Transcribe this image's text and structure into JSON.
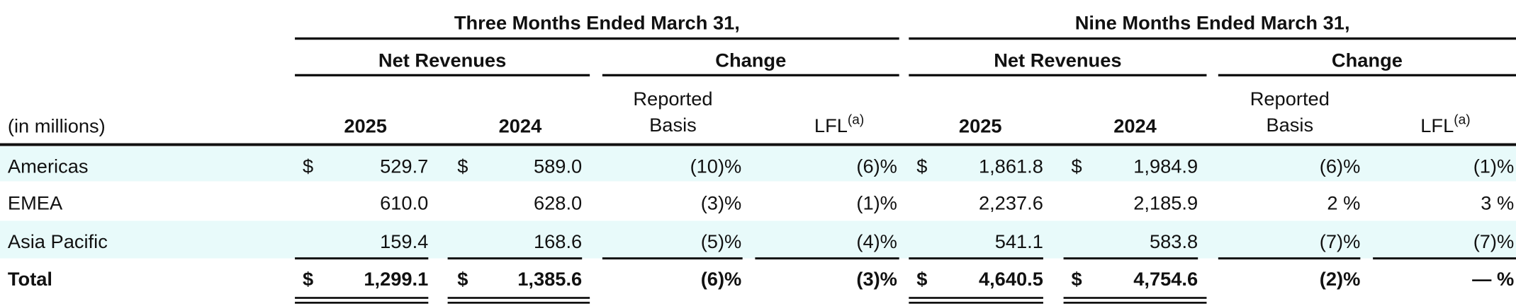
{
  "table": {
    "group_headers": [
      "Three Months Ended March 31,",
      "Nine Months Ended March 31,"
    ],
    "sub_headers": [
      "Net Revenues",
      "Change",
      "Net Revenues",
      "Change"
    ],
    "row_header": "(in millions)",
    "currency_symbol": "$",
    "columns": [
      {
        "label": "2025"
      },
      {
        "label": "2024"
      },
      {
        "label": [
          "Reported",
          "Basis"
        ]
      },
      {
        "label": "LFL",
        "note": "(a)"
      },
      {
        "label": "2025"
      },
      {
        "label": "2024"
      },
      {
        "label": [
          "Reported",
          "Basis"
        ]
      },
      {
        "label": "LFL",
        "note": "(a)"
      }
    ],
    "rows": [
      {
        "label": "Americas",
        "show_currency": true,
        "cells": [
          "529.7",
          "589.0",
          "(10)%",
          "(6)%",
          "1,861.8",
          "1,984.9",
          "(6)%",
          "(1)%"
        ]
      },
      {
        "label": "EMEA",
        "show_currency": false,
        "cells": [
          "610.0",
          "628.0",
          "(3)%",
          "(1)%",
          "2,237.6",
          "2,185.9",
          "2 %",
          "3 %"
        ]
      },
      {
        "label": "Asia Pacific",
        "show_currency": false,
        "cells": [
          "159.4",
          "168.6",
          "(5)%",
          "(4)%",
          "541.1",
          "583.8",
          "(7)%",
          "(7)%"
        ]
      },
      {
        "label": "Total",
        "show_currency": true,
        "total": true,
        "cells": [
          "1,299.1",
          "1,385.6",
          "(6)%",
          "(3)%",
          "4,640.5",
          "4,754.6",
          "(2)%",
          "— %"
        ]
      }
    ]
  }
}
